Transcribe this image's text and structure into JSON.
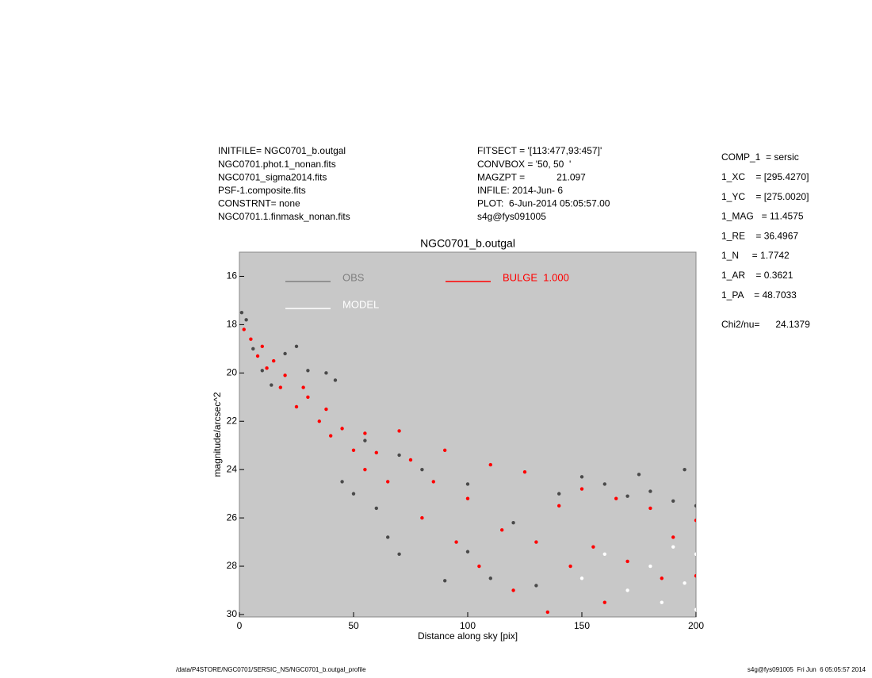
{
  "header": {
    "left": [
      "INITFILE= NGC0701_b.outgal",
      "NGC0701.phot.1_nonan.fits",
      "NGC0701_sigma2014.fits",
      "PSF-1.composite.fits",
      "CONSTRNT= none",
      "NGC0701.1.finmask_nonan.fits"
    ],
    "middle": [
      "FITSECT = '[113:477,93:457]'",
      "CONVBOX = '50, 50  '",
      "MAGZPT =            21.097",
      "INFILE: 2014-Jun- 6",
      "PLOT:  6-Jun-2014 05:05:57.00",
      "s4g@fys091005"
    ],
    "right": [
      "COMP_1  = sersic",
      "1_XC    = [295.4270]",
      "1_YC    = [275.0020]",
      "1_MAG   = 11.4575",
      "1_RE    = 36.4967",
      "1_N     = 1.7742",
      "1_AR    = 0.3621",
      "1_PA    = 48.7033"
    ],
    "chi": "Chi2/nu=      24.1379"
  },
  "footer": {
    "left": "/data/P4STORE/NGC0701/SERSIC_NS/NGC0701_b.outgal_profile",
    "right": "s4g@fys091005  Fri Jun  6 05:05:57 2014"
  },
  "chart_data": {
    "type": "scatter",
    "title": "NGC0701_b.outgal",
    "x_label": "Distance along sky [pix]",
    "y_label": "magnitude/arcsec^2",
    "xlim": [
      0,
      200
    ],
    "xticks": [
      0,
      50,
      100,
      150,
      200
    ],
    "ylim": [
      15,
      30.1
    ],
    "y_inverted": true,
    "yticks": [
      16,
      18,
      20,
      22,
      24,
      26,
      28,
      30
    ],
    "background": "#c8c8c8",
    "series": [
      {
        "name": "OBS",
        "color": "#4a4a4a",
        "legend_color": "#808080",
        "x": [
          1,
          3,
          6,
          10,
          14,
          20,
          25,
          30,
          38,
          42,
          45,
          50,
          55,
          60,
          65,
          70,
          70,
          80,
          90,
          100,
          100,
          110,
          120,
          130,
          140,
          150,
          160,
          170,
          175,
          180,
          190,
          195,
          200
        ],
        "y": [
          17.5,
          17.8,
          19.0,
          19.9,
          20.5,
          19.2,
          18.9,
          19.9,
          20.0,
          20.3,
          24.5,
          25.0,
          22.8,
          25.6,
          26.8,
          23.4,
          27.5,
          24.0,
          28.6,
          24.6,
          27.4,
          28.5,
          26.2,
          28.8,
          25.0,
          24.3,
          24.6,
          25.1,
          24.2,
          24.9,
          25.3,
          24.0,
          25.5
        ]
      },
      {
        "name": "MODEL",
        "color": "#ffffff",
        "legend_color": "#ffffff",
        "x": [
          150,
          160,
          170,
          180,
          185,
          190,
          195,
          200,
          200
        ],
        "y": [
          28.5,
          27.5,
          29.0,
          28.0,
          29.5,
          27.2,
          28.7,
          29.8,
          27.5
        ]
      },
      {
        "name": "BULGE  1.000",
        "color": "#ff0000",
        "legend_color": "#ff0000",
        "x": [
          2,
          5,
          8,
          10,
          12,
          15,
          18,
          20,
          25,
          28,
          30,
          35,
          38,
          40,
          45,
          50,
          55,
          55,
          60,
          65,
          70,
          75,
          80,
          85,
          90,
          95,
          100,
          105,
          110,
          115,
          120,
          125,
          130,
          135,
          140,
          145,
          150,
          155,
          160,
          165,
          170,
          180,
          185,
          190,
          200,
          200
        ],
        "y": [
          18.2,
          18.6,
          19.3,
          18.9,
          19.8,
          19.5,
          20.6,
          20.1,
          21.4,
          20.6,
          21.0,
          22.0,
          21.5,
          22.6,
          22.3,
          23.2,
          24.0,
          22.5,
          23.3,
          24.5,
          22.4,
          23.6,
          26.0,
          24.5,
          23.2,
          27.0,
          25.2,
          28.0,
          23.8,
          26.5,
          29.0,
          24.1,
          27.0,
          29.9,
          25.5,
          28.0,
          24.8,
          27.2,
          29.5,
          25.2,
          27.8,
          25.6,
          28.5,
          26.8,
          26.1,
          28.4
        ]
      }
    ]
  }
}
